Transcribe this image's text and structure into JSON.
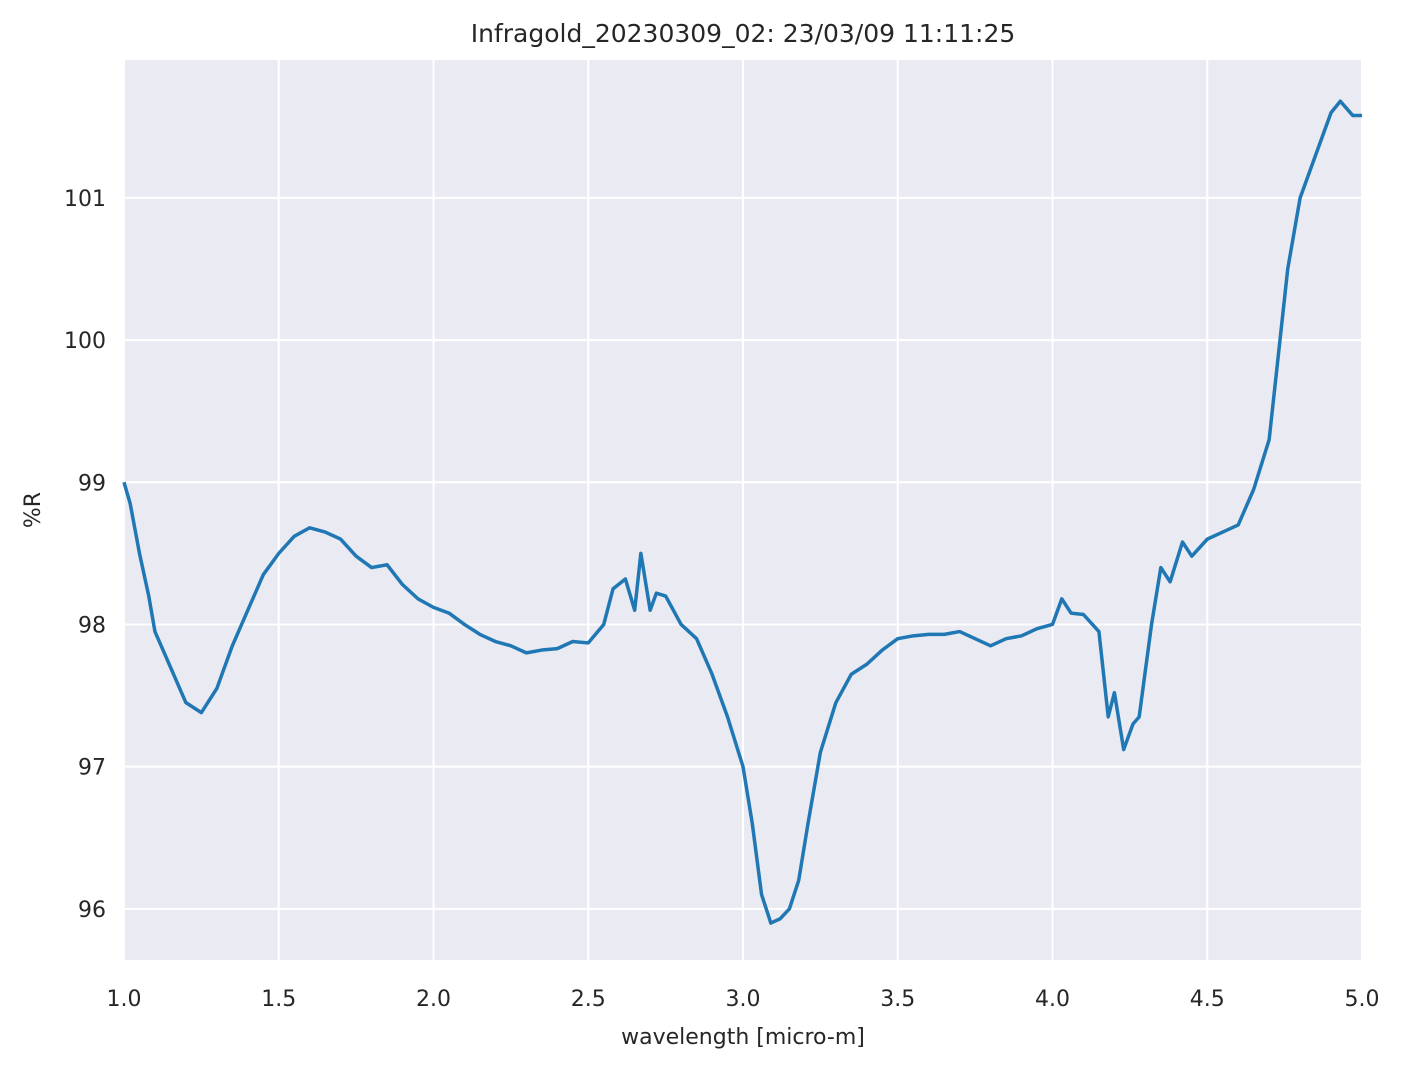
{
  "chart_data": {
    "type": "line",
    "title": "Infragold_20230309_02:  23/03/09 11:11:25",
    "xlabel": "wavelength [micro-m]",
    "ylabel": "%R",
    "x": [
      1.0,
      1.02,
      1.05,
      1.08,
      1.1,
      1.15,
      1.2,
      1.25,
      1.3,
      1.35,
      1.4,
      1.45,
      1.5,
      1.55,
      1.6,
      1.65,
      1.7,
      1.75,
      1.8,
      1.85,
      1.9,
      1.95,
      2.0,
      2.05,
      2.1,
      2.15,
      2.2,
      2.25,
      2.3,
      2.35,
      2.4,
      2.45,
      2.5,
      2.55,
      2.58,
      2.62,
      2.65,
      2.67,
      2.7,
      2.72,
      2.75,
      2.8,
      2.85,
      2.9,
      2.95,
      3.0,
      3.03,
      3.06,
      3.09,
      3.12,
      3.15,
      3.18,
      3.21,
      3.25,
      3.3,
      3.35,
      3.4,
      3.45,
      3.5,
      3.55,
      3.6,
      3.65,
      3.7,
      3.75,
      3.8,
      3.85,
      3.9,
      3.95,
      4.0,
      4.03,
      4.06,
      4.1,
      4.15,
      4.18,
      4.2,
      4.23,
      4.26,
      4.28,
      4.32,
      4.35,
      4.38,
      4.42,
      4.45,
      4.5,
      4.55,
      4.6,
      4.65,
      4.7,
      4.73,
      4.76,
      4.8,
      4.85,
      4.9,
      4.93,
      4.97,
      5.0
    ],
    "series": [
      {
        "name": "%R",
        "color": "#1f77b4",
        "values": [
          99.0,
          98.85,
          98.5,
          98.2,
          97.95,
          97.7,
          97.45,
          97.38,
          97.55,
          97.85,
          98.1,
          98.35,
          98.5,
          98.62,
          98.68,
          98.65,
          98.6,
          98.48,
          98.4,
          98.42,
          98.28,
          98.18,
          98.12,
          98.08,
          98.0,
          97.93,
          97.88,
          97.85,
          97.8,
          97.82,
          97.83,
          97.88,
          97.87,
          98.0,
          98.25,
          98.32,
          98.1,
          98.5,
          98.1,
          98.22,
          98.2,
          98.0,
          97.9,
          97.65,
          97.35,
          97.0,
          96.6,
          96.1,
          95.9,
          95.93,
          96.0,
          96.2,
          96.6,
          97.1,
          97.45,
          97.65,
          97.72,
          97.82,
          97.9,
          97.92,
          97.93,
          97.93,
          97.95,
          97.9,
          97.85,
          97.9,
          97.92,
          97.97,
          98.0,
          98.18,
          98.08,
          98.07,
          97.95,
          97.35,
          97.52,
          97.12,
          97.3,
          97.35,
          98.0,
          98.4,
          98.3,
          98.58,
          98.48,
          98.6,
          98.65,
          98.7,
          98.95,
          99.3,
          99.9,
          100.5,
          101.0,
          101.3,
          101.6,
          101.68,
          101.58,
          101.58
        ]
      }
    ],
    "xlim": [
      1.0,
      5.0
    ],
    "xticks": [
      {
        "value": 1.0,
        "label": "1.0"
      },
      1.5,
      {
        "value": 2.0,
        "label": "2.0"
      },
      2.5,
      {
        "value": 3.0,
        "label": "3.0"
      },
      3.5,
      {
        "value": 4.0,
        "label": "4.0"
      },
      4.5,
      {
        "value": 5.0,
        "label": "5.0"
      }
    ],
    "ylim": [
      95.64,
      101.97
    ],
    "yticks": [
      96,
      97,
      98,
      99,
      100,
      101
    ],
    "grid": true
  }
}
